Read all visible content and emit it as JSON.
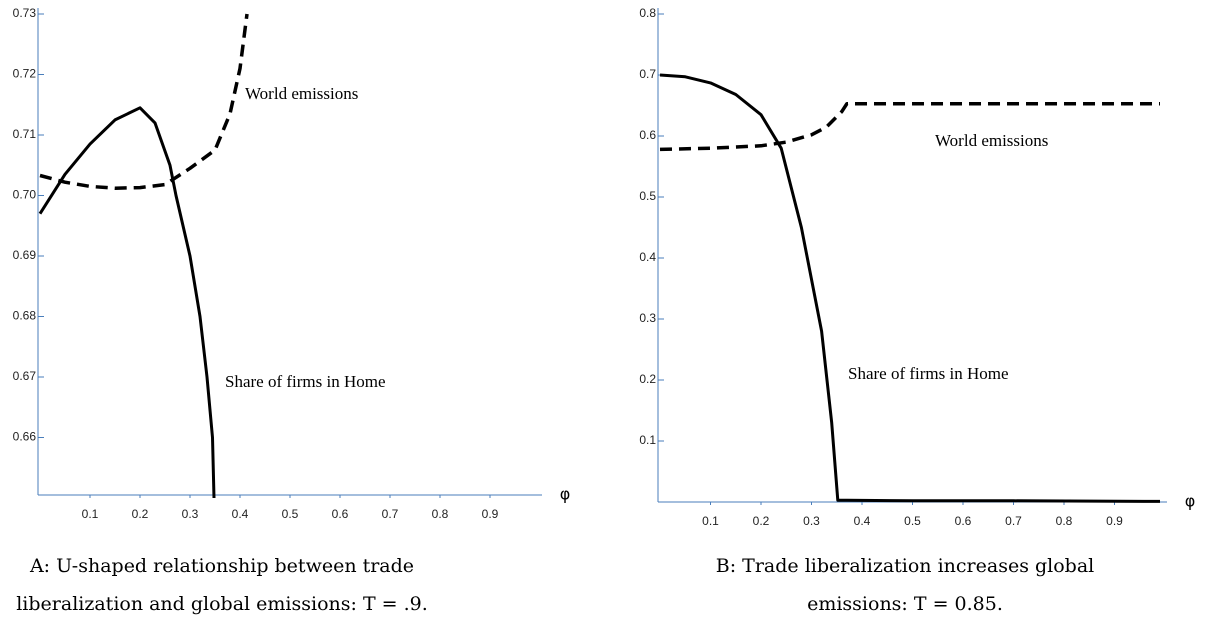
{
  "chart_data": [
    {
      "type": "line",
      "caption": [
        "A: U-shaped relationship between trade",
        "liberalization and global emissions: T = .9."
      ],
      "x_label": "φ",
      "xlim": [
        0,
        1
      ],
      "xticks": [
        0.1,
        0.2,
        0.3,
        0.4,
        0.5,
        0.6,
        0.7,
        0.8,
        0.9
      ],
      "ylim": [
        0.65,
        0.73
      ],
      "yticks": [
        {
          "value": 0.66,
          "label": "0.66"
        },
        {
          "value": 0.67,
          "label": "0.67"
        },
        {
          "value": 0.68,
          "label": "0.68"
        },
        {
          "value": 0.69,
          "label": "0.69"
        },
        {
          "value": 0.7,
          "label": "0.70"
        },
        {
          "value": 0.71,
          "label": "0.71"
        },
        {
          "value": 0.72,
          "label": "0.72"
        },
        {
          "value": 0.73,
          "label": "0.73"
        }
      ],
      "series": [
        {
          "name": "World emissions",
          "color": "#000000",
          "style": "dashed",
          "x": [
            0,
            0.05,
            0.1,
            0.15,
            0.2,
            0.25,
            0.3,
            0.35,
            0.38,
            0.4,
            0.414
          ],
          "values": [
            0.7033,
            0.7022,
            0.7015,
            0.7012,
            0.7013,
            0.7018,
            0.7045,
            0.7075,
            0.7135,
            0.721,
            0.73
          ]
        },
        {
          "name": "Share of firms in Home",
          "color": "#000000",
          "style": "solid",
          "x": [
            0,
            0.05,
            0.1,
            0.15,
            0.2,
            0.23,
            0.26,
            0.272,
            0.3,
            0.32,
            0.334,
            0.345,
            0.348
          ],
          "values": [
            0.697,
            0.7035,
            0.7085,
            0.7125,
            0.7145,
            0.712,
            0.705,
            0.7,
            0.69,
            0.68,
            0.67,
            0.66,
            0.65
          ]
        }
      ]
    },
    {
      "type": "line",
      "caption": [
        "B: Trade liberalization increases global",
        "emissions: T = 0.85."
      ],
      "x_label": "φ",
      "xlim": [
        0,
        1
      ],
      "xticks": [
        0.1,
        0.2,
        0.3,
        0.4,
        0.5,
        0.6,
        0.7,
        0.8,
        0.9
      ],
      "ylim": [
        0,
        0.8
      ],
      "yticks": [
        0.1,
        0.2,
        0.3,
        0.4,
        0.5,
        0.6,
        0.7,
        0.8
      ],
      "series": [
        {
          "name": "World emissions",
          "color": "#000000",
          "style": "dashed",
          "x": [
            0,
            0.1,
            0.2,
            0.25,
            0.3,
            0.33,
            0.36,
            0.37,
            0.5,
            0.7,
            0.99
          ],
          "values": [
            0.578,
            0.58,
            0.584,
            0.59,
            0.602,
            0.615,
            0.64,
            0.653,
            0.653,
            0.653,
            0.653
          ]
        },
        {
          "name": "Share of firms in Home",
          "color": "#000000",
          "style": "solid",
          "x": [
            0,
            0.05,
            0.1,
            0.15,
            0.2,
            0.24,
            0.28,
            0.32,
            0.34,
            0.352,
            0.37,
            0.5,
            0.7,
            0.99
          ],
          "values": [
            0.7,
            0.697,
            0.687,
            0.668,
            0.635,
            0.58,
            0.45,
            0.28,
            0.13,
            0.003,
            0.003,
            0.002,
            0.002,
            0.001
          ]
        }
      ]
    }
  ]
}
